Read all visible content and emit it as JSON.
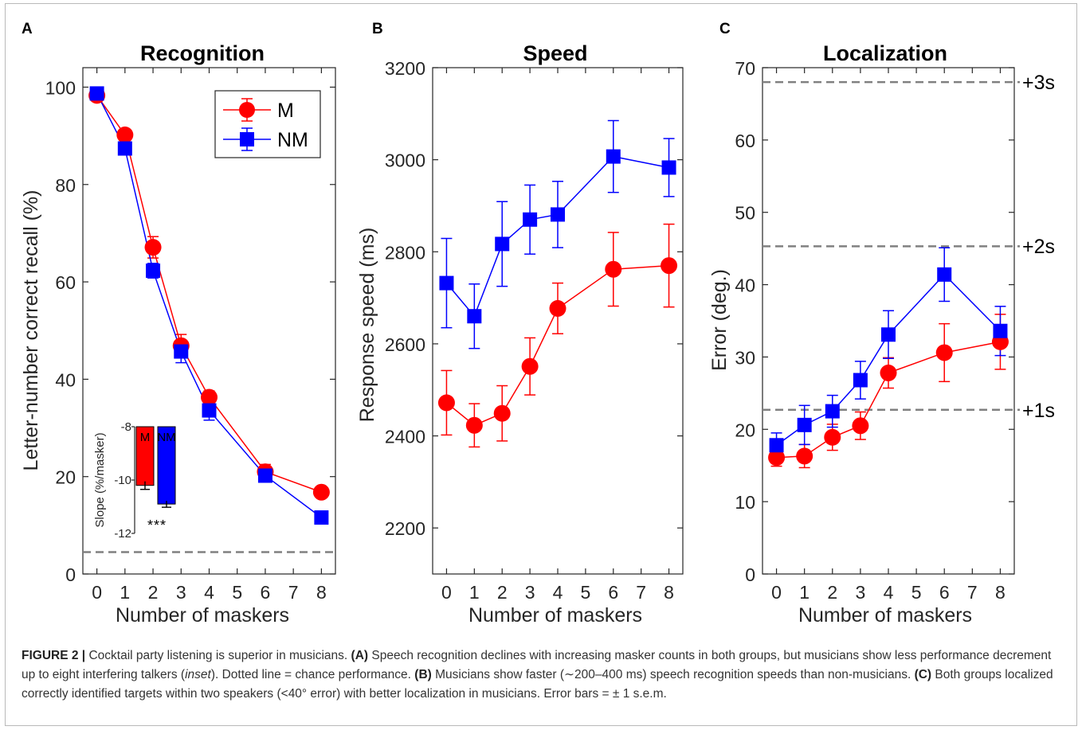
{
  "colors": {
    "M": "#ff0000",
    "NM": "#0000ff",
    "dashed": "#808080",
    "axis": "#262626"
  },
  "panels": [
    {
      "letter": "A",
      "title": "Recognition",
      "xlabel": "Number of maskers",
      "ylabel": "Letter-number correct recall (%)"
    },
    {
      "letter": "B",
      "title": "Speed",
      "xlabel": "Number of maskers",
      "ylabel": "Response speed (ms)"
    },
    {
      "letter": "C",
      "title": "Localization",
      "xlabel": "Number of maskers",
      "ylabel": "Error (deg.)"
    }
  ],
  "legend": {
    "M": "M",
    "NM": "NM"
  },
  "inset": {
    "ylabel": "Slope (%/masker)",
    "categories": [
      "M",
      "NM"
    ],
    "values": [
      -10.2,
      -10.9
    ],
    "errors": [
      0.15,
      0.12
    ],
    "yticks": [
      -8,
      -10,
      -12
    ],
    "ylim": [
      -12,
      -8
    ],
    "significance": "***"
  },
  "sd_lines": [
    {
      "label": "+3s",
      "value": 68
    },
    {
      "label": "+2s",
      "value": 45.3
    },
    {
      "label": "+1s",
      "value": 22.7
    }
  ],
  "chart_data": [
    {
      "type": "line",
      "title": "Recognition",
      "xlabel": "Number of maskers",
      "ylabel": "Letter-number correct recall (%)",
      "x": [
        0,
        1,
        2,
        3,
        4,
        6,
        8
      ],
      "xticks": [
        0,
        1,
        2,
        3,
        4,
        5,
        6,
        7,
        8
      ],
      "yticks": [
        0,
        20,
        40,
        60,
        80,
        100
      ],
      "xlim": [
        -0.5,
        8.5
      ],
      "ylim": [
        0,
        104
      ],
      "chance_line": 4.5,
      "series": [
        {
          "name": "M",
          "values": [
            98.3,
            90.2,
            67.1,
            46.9,
            36.3,
            21.0,
            16.8
          ],
          "errors": [
            0.8,
            1.0,
            2.2,
            2.3,
            1.3,
            1.5,
            0.8
          ]
        },
        {
          "name": "NM",
          "values": [
            98.7,
            87.4,
            62.3,
            45.7,
            33.6,
            20.2,
            11.6
          ],
          "errors": [
            1.0,
            1.3,
            1.5,
            2.3,
            2.0,
            1.3,
            1.0
          ]
        }
      ]
    },
    {
      "type": "line",
      "title": "Speed",
      "xlabel": "Number of maskers",
      "ylabel": "Response speed (ms)",
      "x": [
        0,
        1,
        2,
        3,
        4,
        6,
        8
      ],
      "xticks": [
        0,
        1,
        2,
        3,
        4,
        5,
        6,
        7,
        8
      ],
      "yticks": [
        2200,
        2400,
        2600,
        2800,
        3000,
        3200
      ],
      "xlim": [
        -0.5,
        8.5
      ],
      "ylim": [
        2100,
        3200
      ],
      "series": [
        {
          "name": "M",
          "values": [
            2472,
            2423,
            2449,
            2551,
            2677,
            2762,
            2770
          ],
          "errors": [
            70,
            47,
            60,
            62,
            55,
            80,
            90
          ]
        },
        {
          "name": "NM",
          "values": [
            2732,
            2660,
            2817,
            2870,
            2881,
            3007,
            2983
          ],
          "errors": [
            97,
            70,
            92,
            75,
            72,
            78,
            63
          ]
        }
      ]
    },
    {
      "type": "line",
      "title": "Localization",
      "xlabel": "Number of maskers",
      "ylabel": "Error (deg.)",
      "x": [
        0,
        1,
        2,
        3,
        4,
        6,
        8
      ],
      "xticks": [
        0,
        1,
        2,
        3,
        4,
        5,
        6,
        7,
        8
      ],
      "yticks": [
        0,
        10,
        20,
        30,
        40,
        50,
        60,
        70
      ],
      "xlim": [
        -0.5,
        8.5
      ],
      "ylim": [
        0,
        70
      ],
      "series": [
        {
          "name": "M",
          "values": [
            16.1,
            16.3,
            18.9,
            20.5,
            27.8,
            30.6,
            32.1
          ],
          "errors": [
            1.2,
            1.6,
            1.8,
            1.9,
            2.1,
            4.0,
            3.8
          ]
        },
        {
          "name": "NM",
          "values": [
            17.8,
            20.6,
            22.5,
            26.8,
            33.1,
            41.4,
            33.6
          ],
          "errors": [
            1.7,
            2.7,
            2.2,
            2.6,
            3.3,
            3.7,
            3.4
          ]
        }
      ]
    }
  ],
  "caption": {
    "label": "FIGURE 2 |",
    "t1": " Cocktail party listening is superior in musicians. ",
    "a": "(A)",
    "t2": " Speech recognition declines with increasing masker counts in both groups, but musicians show less performance decrement up to eight interfering talkers (",
    "inset_word": "inset",
    "t3": "). Dotted line = chance performance. ",
    "b": "(B)",
    "t4": " Musicians show faster (∼200–400 ms) speech recognition speeds than non-musicians. ",
    "c": "(C)",
    "t5": " Both groups localized correctly identified targets within two speakers (<40° error) with better localization in musicians. Error bars = ± 1 s.e.m."
  }
}
